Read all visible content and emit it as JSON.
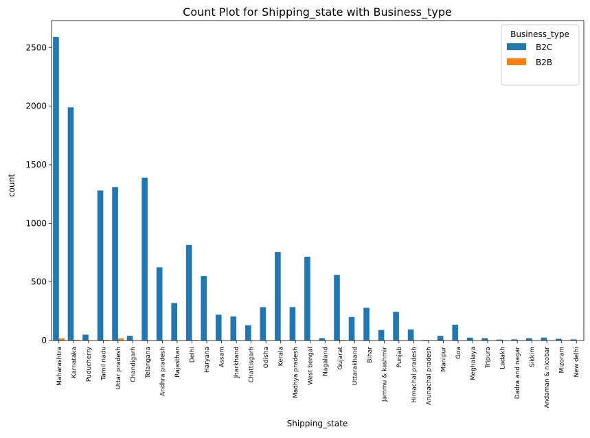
{
  "chart_data": {
    "type": "bar",
    "title": "Count Plot for Shipping_state with Business_type",
    "xlabel": "Shipping_state",
    "ylabel": "count",
    "ylim": [
      0,
      2730
    ],
    "yticks": [
      0,
      500,
      1000,
      1500,
      2000,
      2500
    ],
    "grid": false,
    "legend": {
      "title": "Business_type",
      "placement": "top-right"
    },
    "categories": [
      "Maharashtra",
      "Karnataka",
      "Puducherry",
      "Tamil nadu",
      "Uttar pradesh",
      "Chandigarh",
      "Telangana",
      "Andhra pradesh",
      "Rajasthan",
      "Delhi",
      "Haryana",
      "Assam",
      "Jharkhand",
      "Chattisgarh",
      "Odisha",
      "Kerala",
      "Madhya pradesh",
      "West bengal",
      "Nagaland",
      "Gujarat",
      "Uttarakhand",
      "Bihar",
      "Jammu & kashmir",
      "Punjab",
      "Himachal pradesh",
      "Arunachal pradesh",
      "Manipur",
      "Goa",
      "Meghalaya",
      "Tripura",
      "Ladakh",
      "Dadra and nagar",
      "Sikkim",
      "Andaman & nicobar",
      "Mizoram",
      "New delhi"
    ],
    "series": [
      {
        "name": "B2C",
        "color": "#1f77b4",
        "values": [
          2590,
          1990,
          50,
          1280,
          1310,
          40,
          1390,
          625,
          320,
          815,
          550,
          220,
          205,
          130,
          285,
          755,
          285,
          715,
          20,
          560,
          200,
          280,
          90,
          245,
          95,
          5,
          40,
          135,
          25,
          20,
          8,
          10,
          20,
          25,
          15,
          10
        ]
      },
      {
        "name": "B2B",
        "color": "#ff7f0e",
        "values": [
          18,
          6,
          0,
          6,
          18,
          0,
          0,
          0,
          0,
          5,
          0,
          0,
          0,
          0,
          0,
          0,
          0,
          3,
          0,
          5,
          0,
          0,
          0,
          2,
          0,
          0,
          0,
          0,
          0,
          0,
          0,
          0,
          0,
          0,
          0,
          0
        ]
      }
    ]
  }
}
